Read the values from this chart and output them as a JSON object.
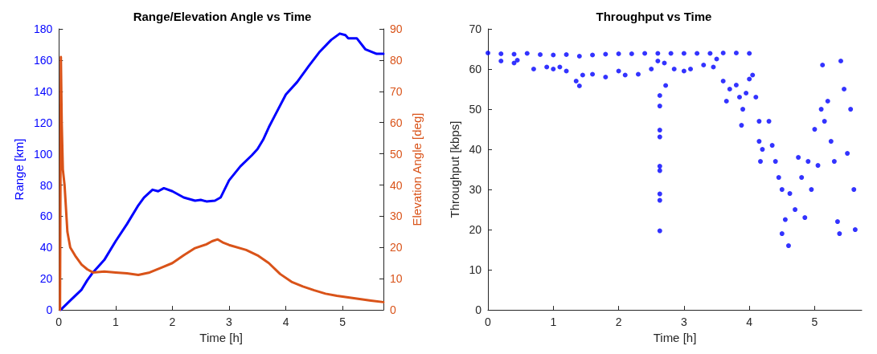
{
  "chart_data": [
    {
      "type": "line",
      "title": "Range/Elevation Angle vs Time",
      "xlabel": "Time [h]",
      "ylabel": "Range [km]",
      "y2label": "Elevation Angle [deg]",
      "xlim": [
        0,
        5.72
      ],
      "xticks": [
        0,
        1,
        2,
        3,
        4,
        5
      ],
      "ylim": [
        0,
        180
      ],
      "yticks": [
        0,
        20,
        40,
        60,
        80,
        100,
        120,
        140,
        160,
        180
      ],
      "y2lim": [
        0,
        90
      ],
      "y2ticks": [
        0,
        10,
        20,
        30,
        40,
        50,
        60,
        70,
        80,
        90
      ],
      "grid": false,
      "marker": "none",
      "line_style": "solid",
      "series": [
        {
          "color": "#0000ff",
          "x": [
            0.03,
            0.2,
            0.4,
            0.5,
            0.6,
            0.8,
            1.0,
            1.2,
            1.4,
            1.5,
            1.65,
            1.75,
            1.85,
            2.0,
            2.2,
            2.4,
            2.5,
            2.6,
            2.75,
            2.85,
            3.0,
            3.2,
            3.4,
            3.5,
            3.6,
            3.7,
            3.8,
            4.0,
            4.2,
            4.4,
            4.6,
            4.8,
            4.95,
            5.05,
            5.1,
            5.25,
            5.4,
            5.6,
            5.72
          ],
          "values": [
            0,
            6,
            13,
            19,
            24,
            32,
            44,
            55,
            67,
            72,
            77,
            76,
            78,
            76,
            72,
            70,
            70.5,
            69.5,
            70,
            72,
            83,
            92,
            99,
            103,
            109,
            117,
            124,
            138,
            146,
            156,
            165.5,
            173,
            177,
            176,
            174,
            174,
            167,
            164,
            164
          ]
        },
        {
          "color": "#d95319",
          "axis": "y2",
          "x": [
            0.02,
            0.035,
            0.05,
            0.07,
            0.1,
            0.15,
            0.2,
            0.3,
            0.4,
            0.5,
            0.6,
            0.8,
            1.0,
            1.2,
            1.4,
            1.6,
            1.8,
            2.0,
            2.2,
            2.4,
            2.6,
            2.7,
            2.8,
            2.9,
            3.0,
            3.3,
            3.5,
            3.7,
            3.9,
            4.1,
            4.3,
            4.5,
            4.7,
            4.9,
            5.1,
            5.3,
            5.5,
            5.72
          ],
          "values": [
            0,
            81,
            60,
            45,
            40,
            25,
            20,
            17,
            14.5,
            13,
            12,
            12.3,
            12,
            11.7,
            11.2,
            12,
            13.5,
            15,
            17.5,
            19.8,
            21,
            22,
            22.6,
            21.5,
            20.8,
            19.2,
            17.5,
            15,
            11.5,
            9,
            7.5,
            6.3,
            5.2,
            4.5,
            4,
            3.5,
            3,
            2.5
          ]
        }
      ]
    },
    {
      "type": "scatter",
      "title": "Throughput vs Time",
      "xlabel": "Time [h]",
      "ylabel": "Throughput [kbps]",
      "xlim": [
        0,
        5.72
      ],
      "xticks": [
        0,
        1,
        2,
        3,
        4,
        5
      ],
      "ylim": [
        0,
        70
      ],
      "yticks": [
        0,
        10,
        20,
        30,
        40,
        50,
        60,
        70
      ],
      "grid": false,
      "marker": "circle",
      "series": [
        {
          "color": "#0000ff",
          "x": [
            0,
            0.2,
            0.4,
            0.6,
            0.8,
            1.0,
            1.2,
            1.4,
            1.6,
            1.8,
            2.0,
            2.2,
            2.4,
            2.6,
            2.8,
            3.0,
            3.2,
            3.4,
            3.6,
            3.8,
            4.0,
            0.2,
            0.4,
            0.45,
            0.7,
            0.9,
            1.0,
            1.1,
            1.2,
            1.35,
            1.4,
            1.45,
            1.6,
            1.8,
            2.0,
            2.1,
            2.3,
            2.5,
            2.6,
            2.7,
            2.72,
            2.85,
            3.0,
            3.1,
            3.3,
            3.45,
            3.5,
            3.6,
            3.7,
            3.65,
            3.8,
            3.85,
            3.9,
            3.88,
            3.95,
            4.0,
            4.05,
            4.1,
            4.15,
            4.15,
            4.2,
            4.17,
            4.3,
            4.35,
            4.4,
            4.45,
            4.5,
            4.5,
            4.55,
            4.6,
            4.62,
            4.7,
            4.75,
            4.8,
            4.85,
            4.9,
            4.95,
            5.0,
            5.05,
            5.1,
            5.12,
            5.15,
            5.2,
            5.25,
            5.3,
            5.35,
            5.38,
            5.4,
            5.45,
            5.5,
            5.55,
            5.6,
            5.62,
            2.63,
            2.63,
            2.63,
            2.63,
            2.63,
            2.63,
            2.63,
            2.63,
            2.63
          ],
          "values": [
            64,
            63.8,
            63.7,
            63.9,
            63.6,
            63.5,
            63.6,
            63.2,
            63.5,
            63.7,
            63.8,
            63.8,
            63.9,
            63.9,
            63.9,
            63.9,
            63.9,
            63.9,
            64,
            64,
            63.9,
            62,
            61.5,
            62.2,
            60,
            60.5,
            60,
            60.5,
            59.5,
            57,
            55.8,
            58.5,
            58.7,
            58,
            59.5,
            58.5,
            58.7,
            60,
            62,
            61.5,
            55.9,
            60,
            59.5,
            60,
            61,
            60.5,
            62.5,
            57,
            55,
            52,
            56,
            53,
            50,
            46,
            54,
            57.5,
            58.5,
            53,
            47,
            42,
            40,
            37,
            47,
            41,
            37,
            33,
            30,
            19,
            22.5,
            16,
            29,
            25,
            38,
            33,
            23,
            37,
            30,
            45,
            36,
            50,
            61,
            47,
            52,
            42,
            37,
            22,
            19,
            62,
            55,
            39,
            50,
            30,
            20,
            53.4,
            50.8,
            44.8,
            43.1,
            35.8,
            34.7,
            28.9,
            27.3,
            19.7
          ]
        }
      ]
    }
  ]
}
